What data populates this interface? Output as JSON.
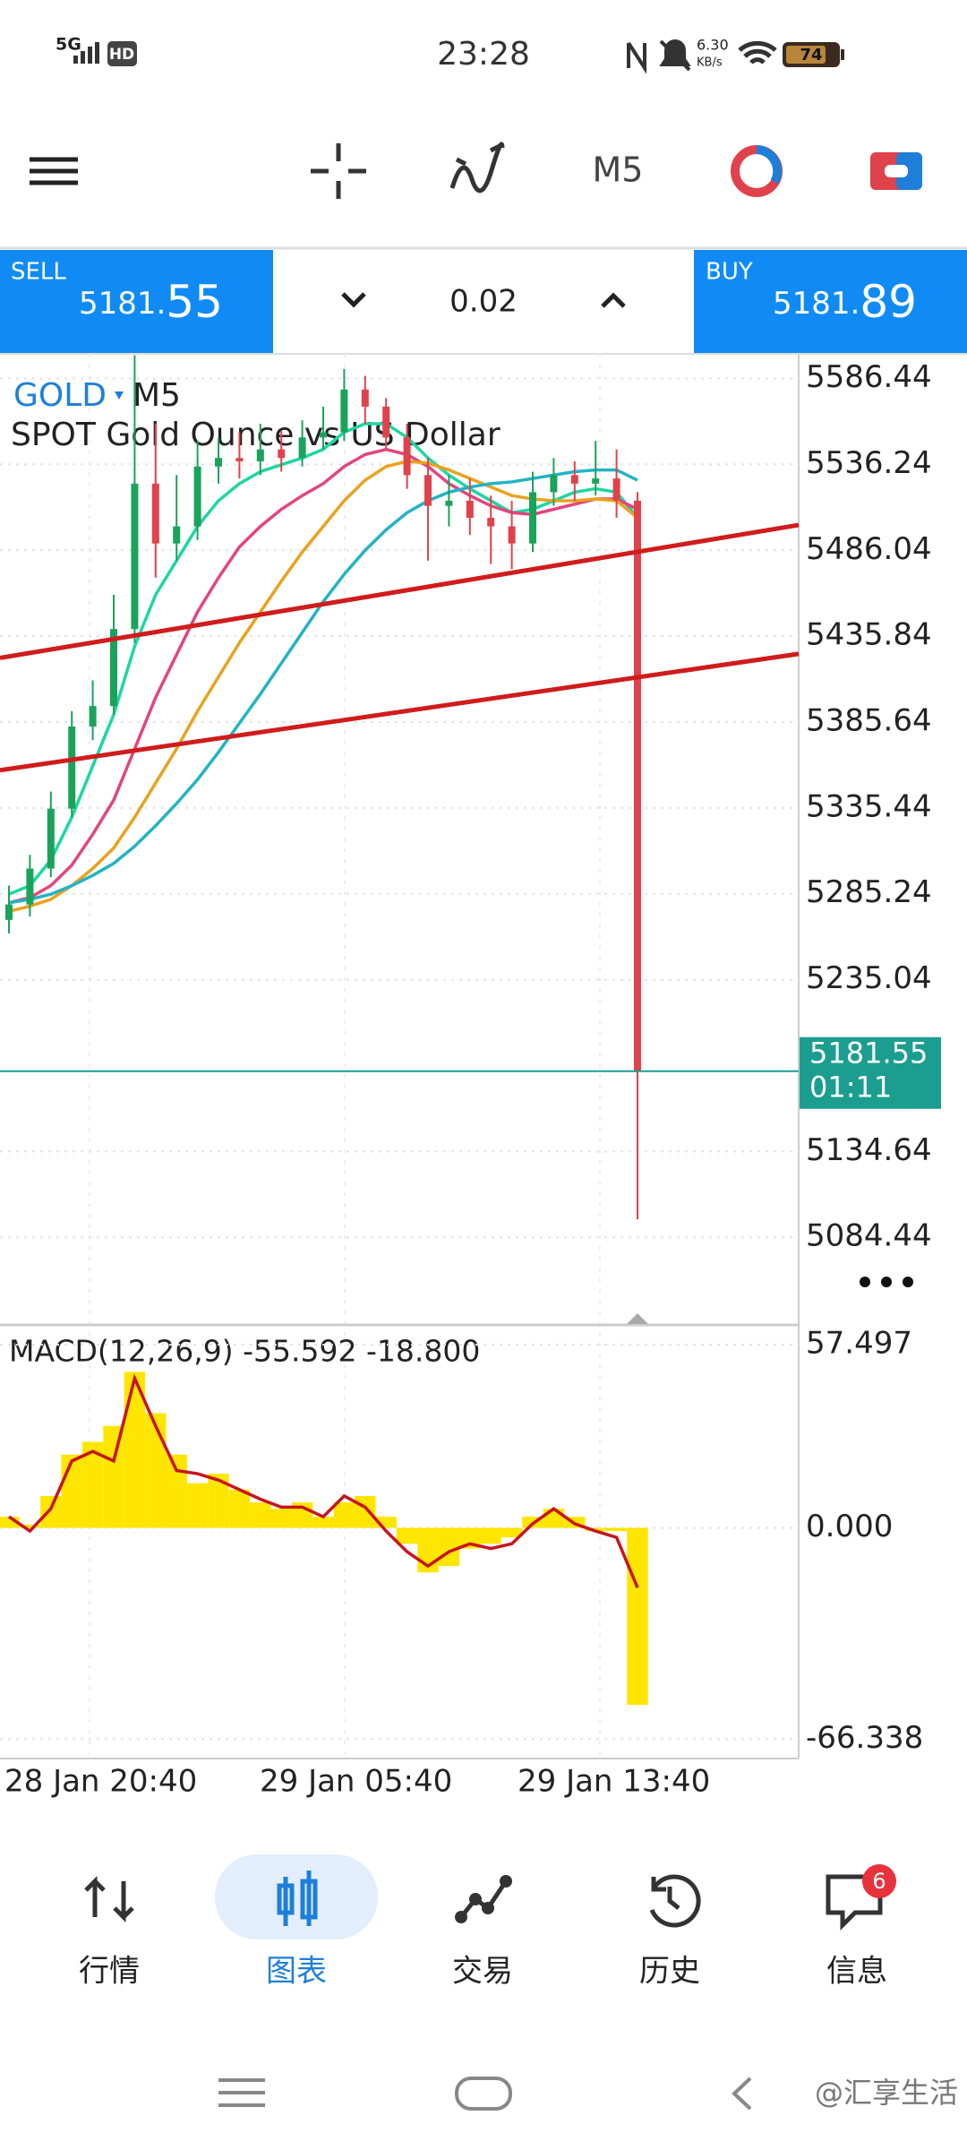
{
  "status_bar": {
    "network": "5G",
    "hd": "HD",
    "time": "23:28",
    "speed": "6.30",
    "speed_unit": "KB/s",
    "battery": "74"
  },
  "toolbar": {
    "timeframe": "M5"
  },
  "trade_panel": {
    "sell_label": "SELL",
    "sell_price_main": "5181.",
    "sell_price_big": "55",
    "lot": "0.02",
    "buy_label": "BUY",
    "buy_price_main": "5181.",
    "buy_price_big": "89"
  },
  "chart_data": [
    {
      "type": "candlestick",
      "symbol": "GOLD",
      "timeframe": "M5",
      "title": "SPOT Gold Ounce vs US Dollar",
      "open": [
        5270,
        5279,
        5300,
        5335,
        5383,
        5395,
        5440,
        5525,
        5490,
        5500,
        5535,
        5540,
        5538,
        5545,
        5540,
        5552,
        5555,
        5580,
        5570,
        5552,
        5530,
        5512,
        5515,
        5505,
        5500,
        5490,
        5520,
        5530,
        5525,
        5528,
        5515
      ],
      "high": [
        5290,
        5308,
        5345,
        5392,
        5410,
        5460,
        5600,
        5560,
        5530,
        5550,
        5552,
        5555,
        5560,
        5556,
        5562,
        5570,
        5592,
        5588,
        5575,
        5560,
        5540,
        5530,
        5528,
        5518,
        5515,
        5532,
        5540,
        5538,
        5550,
        5545,
        5520
      ],
      "low": [
        5262,
        5272,
        5295,
        5330,
        5375,
        5390,
        5432,
        5470,
        5480,
        5492,
        5525,
        5528,
        5530,
        5532,
        5535,
        5545,
        5550,
        5560,
        5545,
        5522,
        5480,
        5500,
        5495,
        5478,
        5475,
        5485,
        5512,
        5515,
        5518,
        5505,
        5095
      ],
      "close": [
        5279,
        5300,
        5335,
        5383,
        5395,
        5440,
        5525,
        5490,
        5500,
        5535,
        5540,
        5538,
        5545,
        5540,
        5552,
        5555,
        5580,
        5570,
        5552,
        5530,
        5512,
        5515,
        5505,
        5500,
        5490,
        5520,
        5530,
        5525,
        5528,
        5515,
        5181.55
      ],
      "up_color": "#1aa35a",
      "down_color": "#e0424b",
      "series": [
        {
          "color": "#1ed6a2",
          "values": [
            5285,
            5290,
            5305,
            5330,
            5360,
            5390,
            5430,
            5460,
            5480,
            5500,
            5515,
            5525,
            5532,
            5536,
            5540,
            5545,
            5555,
            5560,
            5560,
            5552,
            5540,
            5530,
            5522,
            5515,
            5508,
            5510,
            5515,
            5520,
            5522,
            5520,
            5505
          ]
        },
        {
          "color": "#e2457e",
          "values": [
            5280,
            5283,
            5290,
            5302,
            5320,
            5340,
            5370,
            5400,
            5425,
            5450,
            5470,
            5488,
            5500,
            5510,
            5518,
            5525,
            5535,
            5542,
            5545,
            5542,
            5535,
            5525,
            5518,
            5512,
            5508,
            5507,
            5510,
            5513,
            5516,
            5516,
            5510
          ]
        },
        {
          "color": "#e9a21f",
          "values": [
            5275,
            5278,
            5282,
            5290,
            5300,
            5312,
            5330,
            5350,
            5370,
            5392,
            5412,
            5432,
            5450,
            5468,
            5485,
            5500,
            5515,
            5527,
            5535,
            5538,
            5537,
            5533,
            5528,
            5523,
            5518,
            5516,
            5515,
            5515,
            5516,
            5515,
            5505
          ]
        },
        {
          "color": "#22b3c4",
          "values": [
            5280,
            5282,
            5285,
            5290,
            5296,
            5303,
            5313,
            5325,
            5338,
            5352,
            5368,
            5385,
            5402,
            5420,
            5438,
            5456,
            5472,
            5486,
            5498,
            5508,
            5515,
            5520,
            5523,
            5525,
            5526,
            5528,
            5530,
            5532,
            5533,
            5533,
            5527
          ]
        }
      ],
      "lines": [
        {
          "color": "#d01c1c",
          "values": [
            5423.1,
            5500.8
          ]
        },
        {
          "color": "#d01c1c",
          "values": [
            5357.5,
            5425.5
          ]
        }
      ],
      "current_price": 5181.55,
      "countdown": "01:11",
      "price_line_color": "#1b9e8f",
      "ylim": [
        5034.8,
        5600.85
      ],
      "yticks": [
        5586.44,
        5536.24,
        5486.04,
        5435.84,
        5385.64,
        5335.44,
        5285.24,
        5235.04,
        5134.64,
        5084.44
      ],
      "grid": true
    },
    {
      "type": "macd",
      "title": "MACD(12,26,9) -55.592 -18.800",
      "values": [
        3.5,
        1,
        10,
        23,
        27,
        32,
        49,
        36,
        23,
        14,
        17,
        12,
        8,
        6,
        8,
        3.5,
        8,
        10,
        3.5,
        -5,
        -14,
        -12,
        -6.5,
        -5,
        -3,
        3.5,
        6,
        3.5,
        -1,
        -1,
        -55.592
      ],
      "color": "#ffe600",
      "signal": [
        3.5,
        -1,
        6,
        21,
        24,
        21,
        47,
        32,
        18,
        17,
        15,
        12,
        9,
        6.5,
        6.5,
        3.5,
        10,
        6.5,
        -1,
        -7.5,
        -12,
        -7.5,
        -5,
        -6.5,
        -5,
        1.3,
        6,
        1.3,
        -1,
        -3,
        -18.8
      ],
      "signal_color": "#c8141e",
      "ylim": [
        -72.44,
        63.16
      ],
      "yticks": [
        57.497,
        {
          "value": 0,
          "label": "0.000"
        },
        -66.338
      ],
      "xtick_labels": [
        "28 Jan 20:40",
        "29 Jan 05:40",
        "29 Jan 13:40"
      ],
      "grid": true
    }
  ],
  "nav": {
    "tabs": [
      "行情",
      "图表",
      "交易",
      "历史",
      "信息"
    ],
    "badge": "6"
  },
  "watermark": "@汇享生活"
}
